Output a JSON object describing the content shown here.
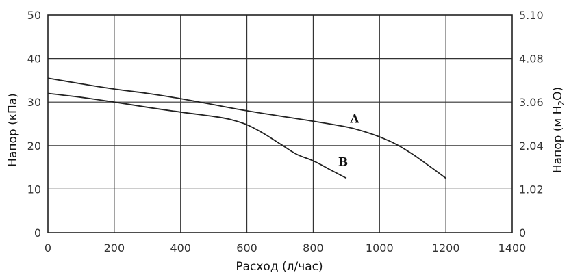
{
  "chart_data": {
    "type": "line",
    "xlabel": "Расход (л/час)",
    "ylabel": "Напор (кПа)",
    "y2label": {
      "prefix": "Напор (м H",
      "sub": "2",
      "suffix": "O)"
    },
    "xlim": [
      0,
      1400
    ],
    "ylim": [
      0,
      50
    ],
    "x_ticks": [
      0,
      200,
      400,
      600,
      800,
      1000,
      1200,
      1400
    ],
    "y_ticks": [
      0,
      10,
      20,
      30,
      40,
      50
    ],
    "y2_ticks": [
      "0",
      "1.02",
      "2.04",
      "3.06",
      "4.08",
      "5.10"
    ],
    "grid": true,
    "series": [
      {
        "name": "A",
        "x": [
          0,
          100,
          200,
          300,
          400,
          500,
          600,
          700,
          800,
          900,
          950,
          1000,
          1050,
          1100,
          1150,
          1200
        ],
        "y": [
          35.5,
          34.2,
          33.0,
          32.0,
          30.8,
          29.4,
          28.0,
          26.8,
          25.6,
          24.3,
          23.3,
          22.0,
          20.3,
          18.0,
          15.3,
          12.5
        ]
      },
      {
        "name": "B",
        "x": [
          0,
          100,
          200,
          300,
          400,
          500,
          550,
          600,
          650,
          700,
          750,
          800,
          850,
          900
        ],
        "y": [
          32.0,
          31.1,
          30.0,
          28.8,
          27.7,
          26.7,
          26.0,
          24.8,
          22.8,
          20.4,
          18.0,
          16.5,
          14.5,
          12.5
        ]
      }
    ]
  }
}
